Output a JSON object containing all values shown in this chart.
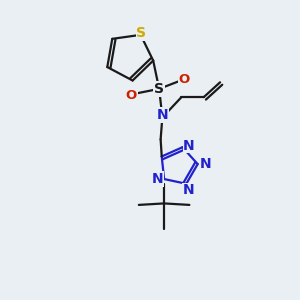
{
  "background_color": "#eaeff3",
  "bond_color": "#1a1a1a",
  "thiophene_S_color": "#ccaa00",
  "O_color": "#cc2200",
  "N_color": "#2222cc",
  "line_width": 1.6,
  "fig_width": 3.0,
  "fig_height": 3.0,
  "dpi": 100,
  "xlim": [
    0,
    10
  ],
  "ylim": [
    0,
    10
  ]
}
